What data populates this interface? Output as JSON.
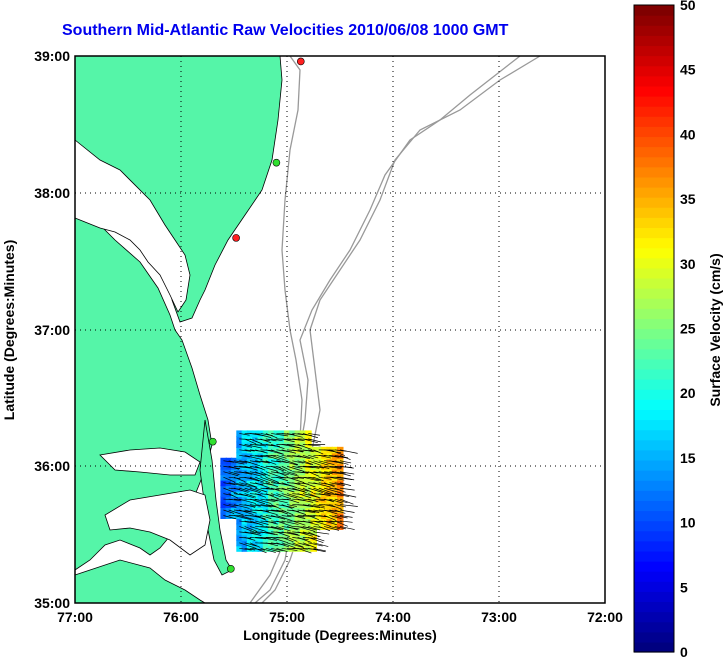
{
  "title": "Southern Mid-Atlantic Raw Velocities 2010/06/08 1000 GMT",
  "map": {
    "xlabel": "Longitude (Degrees:Minutes)",
    "ylabel": "Latitude (Degrees:Minutes)",
    "x_ticks": [
      "77:00",
      "76:00",
      "75:00",
      "74:00",
      "73:00",
      "72:00"
    ],
    "y_ticks": [
      "39:00",
      "38:00",
      "37:00",
      "36:00",
      "35:00"
    ],
    "lon_range": [
      -77,
      -72
    ],
    "lat_range": [
      35,
      39
    ],
    "colors": {
      "land": "#55f5a8",
      "ocean": "#ffffff",
      "coast": "#000000",
      "bathymetry": "#999999",
      "grid": "#000000"
    },
    "stations": [
      {
        "lon": -74.87,
        "lat": 38.96,
        "color": "#ff2020"
      },
      {
        "lon": -75.1,
        "lat": 38.22,
        "color": "#30e030"
      },
      {
        "lon": -75.48,
        "lat": 37.67,
        "color": "#ff2020"
      },
      {
        "lon": -75.7,
        "lat": 36.18,
        "color": "#30e030"
      },
      {
        "lon": -75.53,
        "lat": 35.25,
        "color": "#30e030"
      }
    ],
    "velocity_field": {
      "lon_range": [
        -75.6,
        -74.5
      ],
      "lat_range": [
        35.4,
        36.25
      ],
      "dominant_direction": "southeast"
    }
  },
  "colorbar": {
    "label": "Surface Velocity (cm/s)",
    "ticks": [
      "0",
      "5",
      "10",
      "15",
      "20",
      "25",
      "30",
      "35",
      "40",
      "45",
      "50"
    ],
    "range": [
      0,
      50
    ],
    "colormap": "jet"
  }
}
